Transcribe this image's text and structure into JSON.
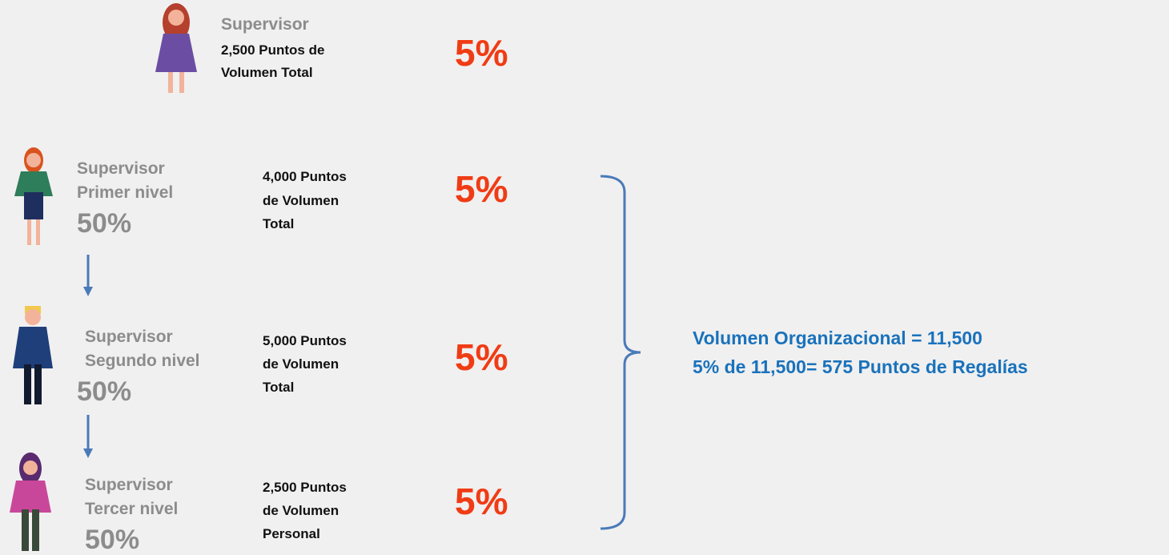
{
  "top": {
    "name": "Supervisor",
    "points": [
      "2,500 Puntos de",
      "Volumen Total"
    ],
    "rate": "5%"
  },
  "levels": [
    {
      "name": [
        "Supervisor",
        "Primer nivel"
      ],
      "share": "50%",
      "points": [
        "4,000 Puntos",
        "de Volumen",
        "Total"
      ],
      "rate": "5%"
    },
    {
      "name": [
        "Supervisor",
        "Segundo nivel"
      ],
      "share": "50%",
      "points": [
        "5,000 Puntos",
        "de Volumen",
        "Total"
      ],
      "rate": "5%"
    },
    {
      "name": [
        "Supervisor",
        "Tercer nivel"
      ],
      "share": "50%",
      "points": [
        "2,500 Puntos",
        "de Volumen",
        "Personal"
      ],
      "rate": "5%"
    }
  ],
  "summary": [
    "Volumen Organizacional = 11,500",
    "5% de 11,500= 575 Puntos de Regalías"
  ]
}
